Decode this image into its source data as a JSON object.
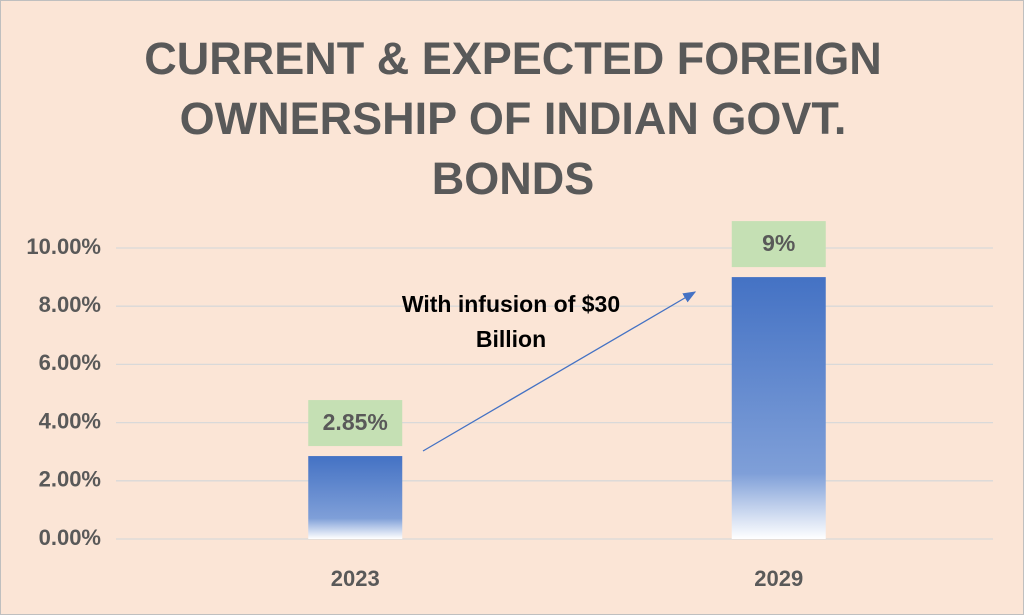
{
  "chart_data": {
    "type": "bar",
    "title": "CURRENT & EXPECTED FOREIGN OWNERSHIP OF INDIAN GOVT. BONDS",
    "annotation": "With infusion of $30 Billion",
    "categories": [
      "2023",
      "2029"
    ],
    "values": [
      2.85,
      9
    ],
    "value_labels": [
      "2.85%",
      "9%"
    ],
    "color": "#4472c4",
    "ylim": [
      0,
      10
    ],
    "yticks": [
      {
        "value": 0,
        "label": "0.00%"
      },
      {
        "value": 2,
        "label": "2.00%"
      },
      {
        "value": 4,
        "label": "4.00%"
      },
      {
        "value": 6,
        "label": "6.00%"
      },
      {
        "value": 8,
        "label": "8.00%"
      },
      {
        "value": 10,
        "label": "10.00%"
      }
    ],
    "grid": true
  }
}
